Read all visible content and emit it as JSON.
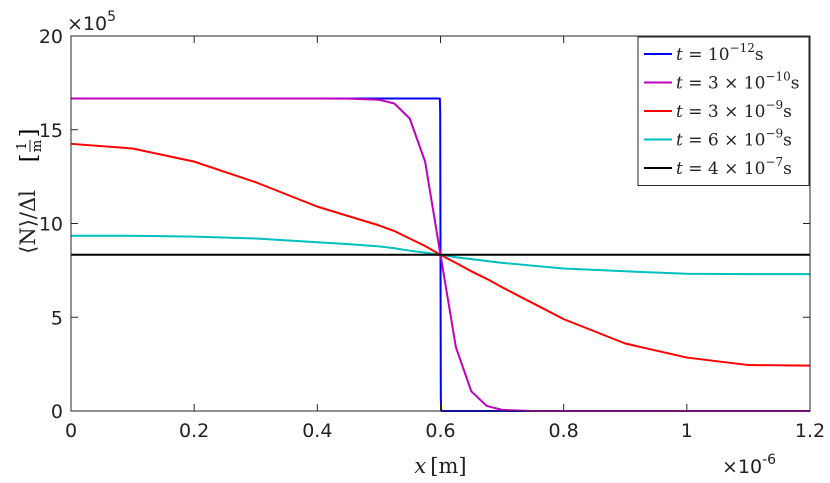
{
  "chart_data": {
    "type": "line",
    "xlabel": "x [m]",
    "xlabel_var": "x",
    "xlabel_unit": "[m]",
    "ylabel": "⟨N⟩/Δl [1/m]",
    "ylabel_main": "⟨N⟩/Δl",
    "ylabel_unit_num": "1",
    "ylabel_unit_den": "m",
    "xlim": [
      0,
      1.2
    ],
    "ylim": [
      0,
      20
    ],
    "x_multiplier": "×10",
    "x_multiplier_exp": "-6",
    "y_multiplier": "×10",
    "y_multiplier_exp": "5",
    "xticks": [
      0,
      0.2,
      0.4,
      0.6,
      0.8,
      1,
      1.2
    ],
    "xtick_labels": [
      "0",
      "0.2",
      "0.4",
      "0.6",
      "0.8",
      "1",
      "1.2"
    ],
    "yticks": [
      0,
      5,
      10,
      15,
      20
    ],
    "ytick_labels": [
      "0",
      "5",
      "10",
      "15",
      "20"
    ],
    "grid": false,
    "legend_position": "top-right",
    "x": [
      0,
      0.1,
      0.2,
      0.3,
      0.4,
      0.45,
      0.5,
      0.525,
      0.55,
      0.575,
      0.6,
      0.625,
      0.65,
      0.675,
      0.7,
      0.75,
      0.8,
      0.9,
      1.0,
      1.1,
      1.2
    ],
    "series": [
      {
        "name": "t = 10^-12 s",
        "label_parts": [
          "t",
          " = 10",
          "−12",
          "s"
        ],
        "color": "#0000ff",
        "x": [
          0,
          0.598,
          0.599,
          0.5995,
          0.6,
          0.6005,
          0.601,
          0.602,
          1.2
        ],
        "values": [
          16.67,
          16.67,
          16.66,
          15.9,
          8.33,
          0.8,
          0.01,
          0,
          0
        ]
      },
      {
        "name": "t = 3 × 10^-10 s",
        "label_parts": [
          "t",
          " = 3 × 10",
          "−10",
          "s"
        ],
        "color": "#bf00bf",
        "values": [
          16.67,
          16.67,
          16.67,
          16.67,
          16.67,
          16.66,
          16.6,
          16.4,
          15.6,
          13.3,
          8.33,
          3.4,
          1.05,
          0.27,
          0.06,
          0.0,
          0,
          0,
          0,
          0,
          0
        ]
      },
      {
        "name": "t = 3 × 10^-9 s",
        "label_parts": [
          "t",
          " = 3 × 10",
          "−9",
          "s"
        ],
        "color": "#ff0000",
        "values": [
          14.25,
          14.0,
          13.3,
          12.2,
          10.9,
          10.4,
          9.9,
          9.6,
          9.2,
          8.8,
          8.33,
          7.9,
          7.45,
          7.05,
          6.6,
          5.75,
          4.9,
          3.6,
          2.85,
          2.45,
          2.42
        ]
      },
      {
        "name": "t = 6 × 10^-9 s",
        "label_parts": [
          "t",
          " = 6 × 10",
          "−9",
          "s"
        ],
        "color": "#00bfbf",
        "values": [
          9.35,
          9.35,
          9.3,
          9.2,
          9.0,
          8.9,
          8.78,
          8.68,
          8.55,
          8.45,
          8.33,
          8.2,
          8.1,
          8.0,
          7.9,
          7.75,
          7.6,
          7.45,
          7.32,
          7.3,
          7.3
        ]
      },
      {
        "name": "t = 4 × 10^-7 s",
        "label_parts": [
          "t",
          " = 4 × 10",
          "−7",
          "s"
        ],
        "color": "#000000",
        "values": [
          8.33,
          8.33,
          8.33,
          8.33,
          8.33,
          8.33,
          8.33,
          8.33,
          8.33,
          8.33,
          8.33,
          8.33,
          8.33,
          8.33,
          8.33,
          8.33,
          8.33,
          8.33,
          8.33,
          8.33,
          8.33
        ]
      }
    ]
  }
}
